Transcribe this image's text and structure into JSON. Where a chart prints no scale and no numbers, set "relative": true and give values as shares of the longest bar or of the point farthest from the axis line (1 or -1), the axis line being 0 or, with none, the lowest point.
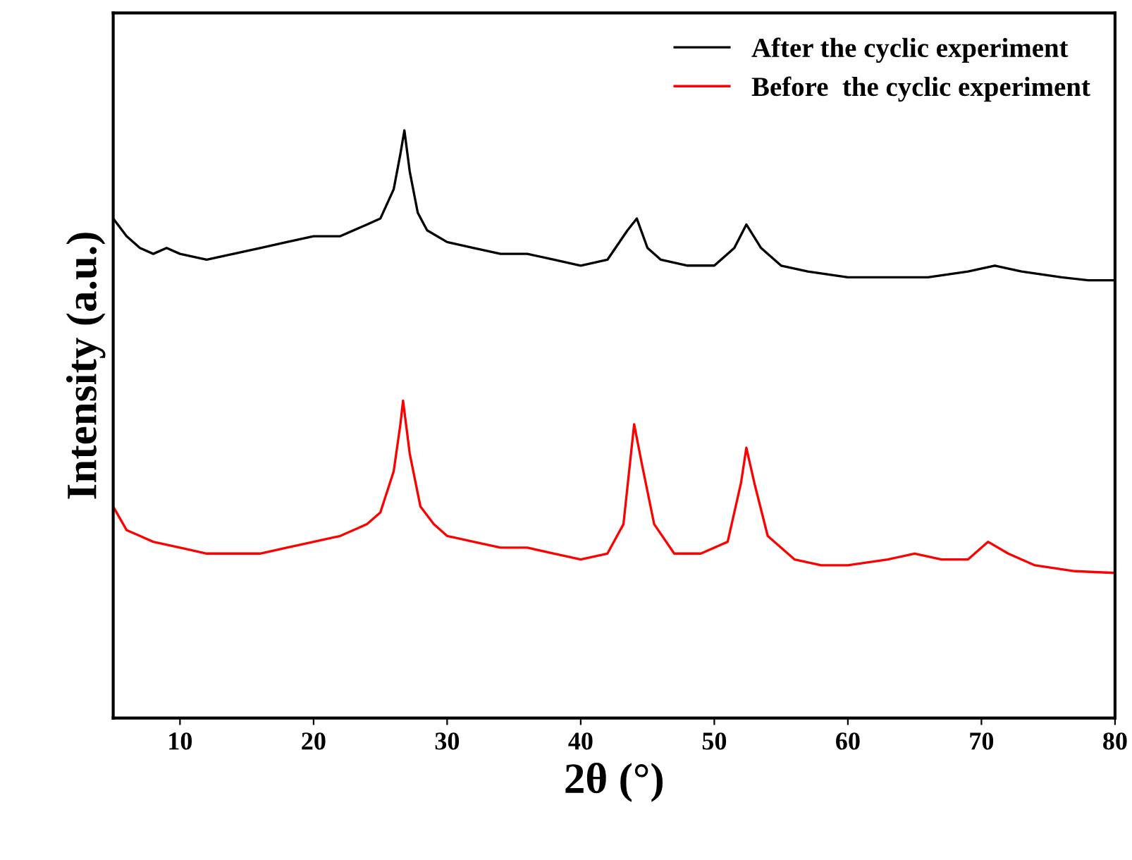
{
  "chart_data": {
    "type": "line",
    "relative": true,
    "xlabel": "2θ (°)",
    "ylabel": "Intensity (a.u.)",
    "xlim": [
      5,
      80
    ],
    "xticks": [
      10,
      20,
      30,
      40,
      50,
      60,
      70,
      80
    ],
    "tick_labels": "x",
    "grid": false,
    "legend": "top right",
    "line_style": "solid",
    "marker": "none",
    "series": [
      {
        "name": "After the cyclic experiment",
        "color": "#000000",
        "x": [
          5,
          6,
          7,
          8,
          9,
          10,
          12,
          14,
          16,
          18,
          20,
          22,
          24,
          25,
          26,
          26.5,
          26.8,
          27.2,
          27.8,
          28.5,
          30,
          32,
          34,
          36,
          38,
          40,
          42,
          43.5,
          44.2,
          45,
          46,
          48,
          50,
          51.5,
          52.4,
          53.5,
          55,
          57,
          60,
          63,
          66,
          69,
          71,
          73,
          76,
          78,
          80
        ],
        "values": [
          0.85,
          0.82,
          0.8,
          0.79,
          0.8,
          0.79,
          0.78,
          0.79,
          0.8,
          0.81,
          0.82,
          0.82,
          0.84,
          0.85,
          0.9,
          0.96,
          1.0,
          0.93,
          0.86,
          0.83,
          0.81,
          0.8,
          0.79,
          0.79,
          0.78,
          0.77,
          0.78,
          0.83,
          0.85,
          0.8,
          0.78,
          0.77,
          0.77,
          0.8,
          0.84,
          0.8,
          0.77,
          0.76,
          0.75,
          0.75,
          0.75,
          0.76,
          0.77,
          0.76,
          0.75,
          0.745,
          0.745
        ]
      },
      {
        "name": "Before  the cyclic experiment",
        "color": "#ff0000",
        "x": [
          5,
          6,
          7,
          8,
          10,
          12,
          14,
          16,
          18,
          20,
          22,
          24,
          25,
          26,
          26.5,
          26.7,
          27.2,
          28,
          29,
          30,
          32,
          34,
          36,
          38,
          40,
          42,
          43.2,
          44,
          44.6,
          45.5,
          47,
          49,
          51,
          52,
          52.4,
          53,
          54,
          56,
          58,
          60,
          63,
          65,
          67,
          69,
          70.5,
          72,
          74,
          77,
          80
        ],
        "values": [
          0.36,
          0.32,
          0.31,
          0.3,
          0.29,
          0.28,
          0.28,
          0.28,
          0.29,
          0.3,
          0.31,
          0.33,
          0.35,
          0.42,
          0.5,
          0.54,
          0.45,
          0.36,
          0.33,
          0.31,
          0.3,
          0.29,
          0.29,
          0.28,
          0.27,
          0.28,
          0.33,
          0.5,
          0.43,
          0.33,
          0.28,
          0.28,
          0.3,
          0.4,
          0.46,
          0.4,
          0.31,
          0.27,
          0.26,
          0.26,
          0.27,
          0.28,
          0.27,
          0.27,
          0.3,
          0.28,
          0.26,
          0.25,
          0.247
        ]
      }
    ]
  }
}
